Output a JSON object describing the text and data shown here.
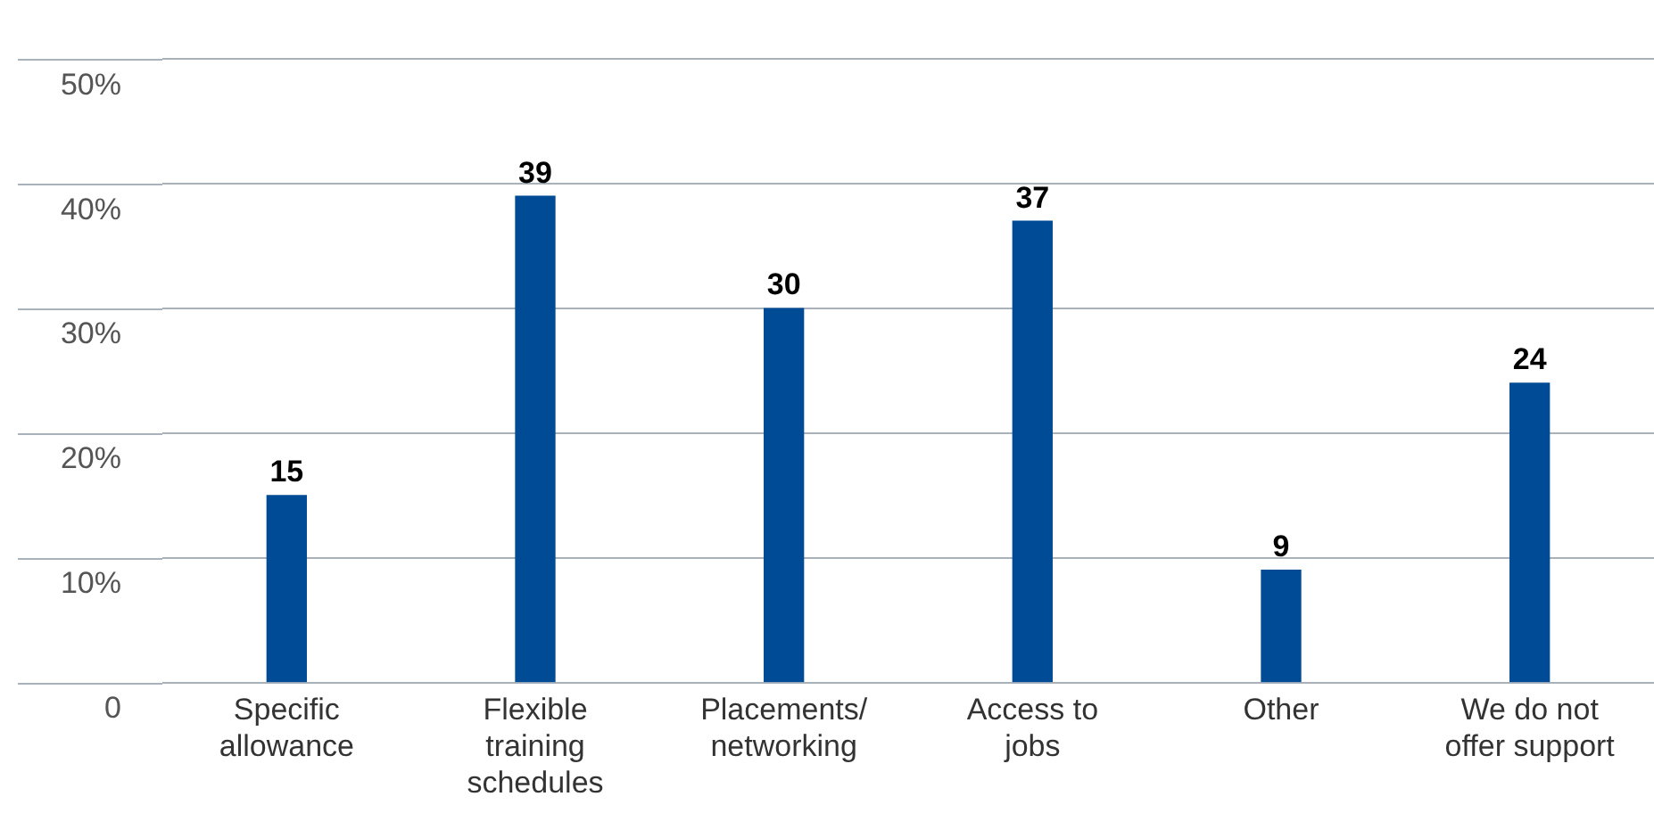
{
  "chart_data": {
    "type": "bar",
    "categories": [
      "Specific allowance",
      "Flexible training schedules",
      "Placements/ networking",
      "Access to jobs",
      "Other",
      "We do not offer support"
    ],
    "values": [
      15,
      39,
      30,
      37,
      9,
      24
    ],
    "color": "#004b96",
    "ylim": [
      0,
      50
    ],
    "yticks": [
      {
        "value": 0,
        "label": "0"
      },
      {
        "value": 10,
        "label": "10%"
      },
      {
        "value": 20,
        "label": "20%"
      },
      {
        "value": 30,
        "label": "30%"
      },
      {
        "value": 40,
        "label": "40%"
      },
      {
        "value": 50,
        "label": "50%"
      }
    ],
    "grid": "y",
    "data_labels": true
  }
}
